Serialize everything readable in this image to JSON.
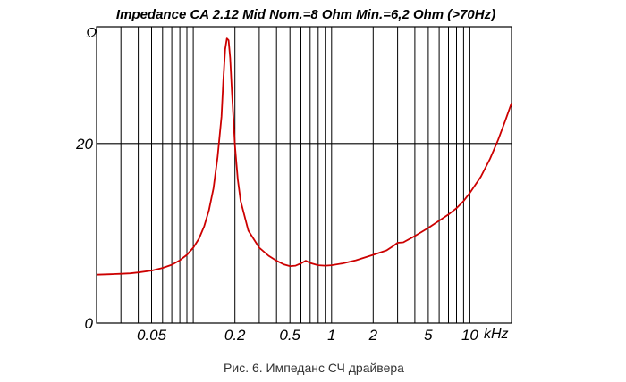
{
  "chart_data": {
    "type": "line",
    "title": "Impedance CA 2.12 Mid  Nom.=8 Ohm  Min.=6,2 Ohm (>70Hz)",
    "caption": "Рис. 6. Импеданс СЧ драйвера",
    "x_scale": "log",
    "x_unit": "kHz",
    "y_unit": "Ω",
    "xlim": [
      0.02,
      20
    ],
    "ylim": [
      0,
      33
    ],
    "grid": true,
    "x_tick_labels": [
      {
        "value": 0.05,
        "label": "0.05"
      },
      {
        "value": 0.2,
        "label": "0.2"
      },
      {
        "value": 0.5,
        "label": "0.5"
      },
      {
        "value": 1,
        "label": "1"
      },
      {
        "value": 2,
        "label": "2"
      },
      {
        "value": 5,
        "label": "5"
      },
      {
        "value": 10,
        "label": "10"
      }
    ],
    "x_gridlines": [
      0.03,
      0.04,
      0.05,
      0.06,
      0.07,
      0.08,
      0.09,
      0.1,
      0.2,
      0.3,
      0.4,
      0.5,
      0.6,
      0.7,
      0.8,
      0.9,
      1,
      2,
      3,
      4,
      5,
      6,
      7,
      8,
      9,
      10
    ],
    "y_tick_labels": [
      {
        "value": 0,
        "label": "0"
      },
      {
        "value": 20,
        "label": "20"
      }
    ],
    "y_gridlines": [
      20
    ],
    "series": [
      {
        "color": "#cc0000",
        "points": [
          [
            0.02,
            5.4
          ],
          [
            0.025,
            5.45
          ],
          [
            0.03,
            5.5
          ],
          [
            0.035,
            5.55
          ],
          [
            0.04,
            5.65
          ],
          [
            0.05,
            5.85
          ],
          [
            0.06,
            6.15
          ],
          [
            0.07,
            6.5
          ],
          [
            0.08,
            7.0
          ],
          [
            0.09,
            7.6
          ],
          [
            0.1,
            8.4
          ],
          [
            0.11,
            9.4
          ],
          [
            0.12,
            10.8
          ],
          [
            0.13,
            12.6
          ],
          [
            0.14,
            15.0
          ],
          [
            0.15,
            18.5
          ],
          [
            0.16,
            23.0
          ],
          [
            0.165,
            27.0
          ],
          [
            0.17,
            30.5
          ],
          [
            0.175,
            31.7
          ],
          [
            0.18,
            31.5
          ],
          [
            0.185,
            29.5
          ],
          [
            0.19,
            26.0
          ],
          [
            0.2,
            19.8
          ],
          [
            0.21,
            16.0
          ],
          [
            0.22,
            13.6
          ],
          [
            0.25,
            10.3
          ],
          [
            0.3,
            8.4
          ],
          [
            0.35,
            7.5
          ],
          [
            0.4,
            6.95
          ],
          [
            0.45,
            6.55
          ],
          [
            0.5,
            6.35
          ],
          [
            0.55,
            6.4
          ],
          [
            0.6,
            6.65
          ],
          [
            0.65,
            6.95
          ],
          [
            0.7,
            6.7
          ],
          [
            0.8,
            6.45
          ],
          [
            0.9,
            6.4
          ],
          [
            1.0,
            6.45
          ],
          [
            1.2,
            6.65
          ],
          [
            1.5,
            7.0
          ],
          [
            2.0,
            7.6
          ],
          [
            2.5,
            8.1
          ],
          [
            2.8,
            8.6
          ],
          [
            3.0,
            8.95
          ],
          [
            3.3,
            9.0
          ],
          [
            4.0,
            9.7
          ],
          [
            5.0,
            10.6
          ],
          [
            6.0,
            11.4
          ],
          [
            7.0,
            12.1
          ],
          [
            8.0,
            12.8
          ],
          [
            9.0,
            13.6
          ],
          [
            10.0,
            14.5
          ],
          [
            12.0,
            16.3
          ],
          [
            14.0,
            18.3
          ],
          [
            16.0,
            20.4
          ],
          [
            18.0,
            22.5
          ],
          [
            20.0,
            24.5
          ]
        ]
      }
    ],
    "colors": {
      "curve": "#cc0000",
      "grid": "#000000",
      "frame": "#000000",
      "caption": "#333333"
    }
  }
}
